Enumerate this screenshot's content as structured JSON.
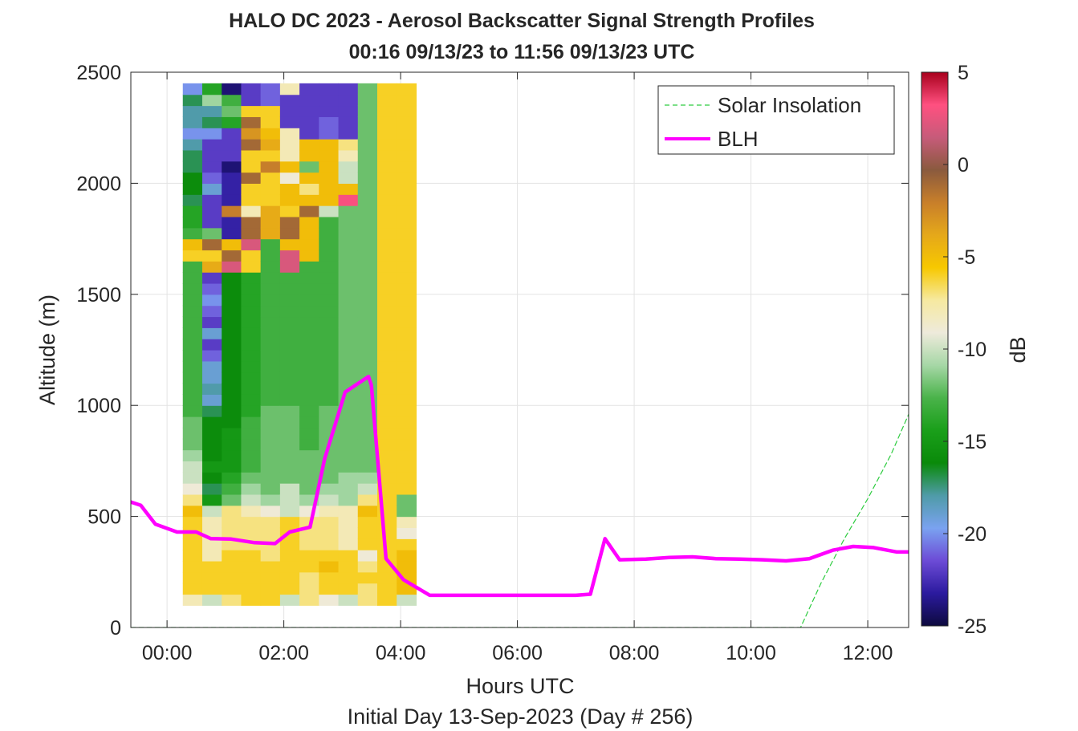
{
  "chart_data": {
    "type": "heatmap",
    "title": "HALO DC 2023 - Aerosol Backscatter Signal Strength Profiles",
    "subtitle": "00:16 09/13/23 to 11:56 09/13/23  UTC",
    "xlabel": "Hours UTC",
    "ylabel": "Altitude (m)",
    "footer": "Initial Day 13-Sep-2023 (Day # 256)",
    "x_unit": "hours UTC",
    "xlim": [
      -0.62,
      12.7
    ],
    "ylim": [
      0,
      2500
    ],
    "x_ticks": [
      {
        "value": 0,
        "label": "00:00"
      },
      {
        "value": 2,
        "label": "02:00"
      },
      {
        "value": 4,
        "label": "04:00"
      },
      {
        "value": 6,
        "label": "06:00"
      },
      {
        "value": 8,
        "label": "08:00"
      },
      {
        "value": 10,
        "label": "10:00"
      },
      {
        "value": 12,
        "label": "12:00"
      }
    ],
    "y_ticks": [
      {
        "value": 0,
        "label": "0"
      },
      {
        "value": 500,
        "label": "500"
      },
      {
        "value": 1000,
        "label": "1000"
      },
      {
        "value": 1500,
        "label": "1500"
      },
      {
        "value": 2000,
        "label": "2000"
      },
      {
        "value": 2500,
        "label": "2500"
      }
    ],
    "grid": true,
    "legend_position": "top-right",
    "colorbar": {
      "label": "dB",
      "range": [
        -25,
        5
      ],
      "ticks": [
        {
          "value": 5,
          "label": "5"
        },
        {
          "value": 0,
          "label": "0"
        },
        {
          "value": -5,
          "label": "-5"
        },
        {
          "value": -10,
          "label": "-10"
        },
        {
          "value": -15,
          "label": "-15"
        },
        {
          "value": -20,
          "label": "-20"
        },
        {
          "value": -25,
          "label": "-25"
        }
      ]
    },
    "heatmap": {
      "x_start": 0.27,
      "x_step": 0.333,
      "y_start": 100,
      "y_step": 50,
      "note_rows": "rows listed from lowest altitude bin upward; values in dB",
      "columns": [
        [
          -8,
          -6,
          -6,
          -6,
          -6,
          -6,
          -6,
          -6,
          -5,
          -7,
          -9,
          -10,
          -10,
          -11,
          -12,
          -12,
          -12,
          -13,
          -13,
          -13,
          -13,
          -13,
          -13,
          -13,
          -13,
          -13,
          -13,
          -13,
          -13,
          -13,
          -13,
          -6,
          -5,
          -13,
          -14,
          -14,
          -17,
          -16,
          -16,
          -17,
          -17,
          -18,
          -20,
          -18,
          -18,
          -17,
          -20
        ],
        [
          -10,
          -6,
          -6,
          -6,
          -8,
          -8,
          -8,
          -8,
          -10,
          -15,
          -17,
          -16,
          -15,
          -16,
          -16,
          -16,
          -16,
          -17,
          -19,
          -18,
          -19,
          -19,
          -21,
          -22,
          -19,
          -22,
          -21,
          -20,
          -21,
          -22,
          -4,
          -6,
          -1,
          -12,
          -22,
          -22,
          -22,
          -19,
          -21,
          -22,
          -22,
          -22,
          -20,
          -17,
          -18,
          -11,
          -14
        ],
        [
          -7,
          -6,
          -6,
          -6,
          -6,
          -7,
          -7,
          -7,
          -7,
          -12,
          -13,
          -14,
          -15,
          -15,
          -15,
          -15,
          -16,
          -16,
          -16,
          -16,
          -16,
          -16,
          -16,
          -16,
          -16,
          -16,
          -16,
          -16,
          -16,
          -16,
          2,
          -1,
          -5,
          -23,
          -23,
          -2,
          -23,
          -23,
          -23,
          -24,
          -22,
          -22,
          -22,
          -14,
          -12,
          -13,
          -24
        ],
        [
          -6,
          -6,
          -6,
          -6,
          -6,
          -7,
          -7,
          -7,
          -8,
          -10,
          -11,
          -12,
          -13,
          -13,
          -13,
          -13,
          -13,
          -14,
          -14,
          -14,
          -14,
          -14,
          -14,
          -14,
          -14,
          -14,
          -14,
          -14,
          -14,
          -14,
          -6,
          -6,
          2,
          -1,
          -1,
          -8,
          -6,
          -6,
          -1,
          -6,
          -6,
          -1,
          -3,
          -1,
          -6,
          -22,
          -22
        ],
        [
          -6,
          -6,
          -6,
          -6,
          -7,
          -7,
          -7,
          -7,
          -9,
          -11,
          -12,
          -12,
          -12,
          -12,
          -12,
          -12,
          -12,
          -12,
          -13,
          -13,
          -13,
          -13,
          -13,
          -13,
          -13,
          -13,
          -13,
          -13,
          -13,
          -13,
          -13,
          -13,
          -13,
          -4,
          -4,
          -4,
          -6,
          -6,
          -6,
          -2,
          -6,
          -4,
          -5,
          -6,
          -6,
          -21,
          -21
        ],
        [
          -10,
          -6,
          -6,
          -6,
          -6,
          -6,
          -6,
          -6,
          -10,
          -10,
          -10,
          -12,
          -12,
          -12,
          -12,
          -12,
          -12,
          -12,
          -13,
          -13,
          -13,
          -13,
          -13,
          -13,
          -13,
          -13,
          -13,
          -13,
          -13,
          -13,
          2,
          2,
          -5,
          -1,
          -1,
          -6,
          -5,
          -5,
          -9,
          -5,
          -8,
          -8,
          -8,
          -22,
          -22,
          -22,
          -8
        ],
        [
          -7,
          -7,
          -7,
          -6,
          -6,
          -7,
          -7,
          -7,
          -9,
          -11,
          -12,
          -12,
          -12,
          -12,
          -13,
          -13,
          -13,
          -13,
          -13,
          -13,
          -13,
          -13,
          -13,
          -13,
          -13,
          -13,
          -13,
          -13,
          -13,
          -13,
          -13,
          -5,
          -5,
          -5,
          -5,
          -1,
          -5,
          -7,
          -5,
          -12,
          -5,
          -5,
          -22,
          -22,
          -22,
          -22,
          -22
        ],
        [
          -9,
          -6,
          -6,
          -5,
          -6,
          -7,
          -7,
          -7,
          -8,
          -10,
          -11,
          -12,
          -12,
          -12,
          -12,
          -12,
          -12,
          -12,
          -13,
          -13,
          -13,
          -13,
          -13,
          -13,
          -13,
          -13,
          -13,
          -13,
          -13,
          -13,
          -13,
          -13,
          -13,
          -13,
          -13,
          -10,
          -5,
          -5,
          -5,
          -5,
          -5,
          -5,
          -21,
          -21,
          -22,
          -22,
          -22
        ],
        [
          -10,
          -6,
          -6,
          -6,
          -6,
          -8,
          -8,
          -8,
          -8,
          -11,
          -11,
          -11,
          -12,
          -12,
          -12,
          -12,
          -12,
          -12,
          -12,
          -12,
          -12,
          -12,
          -12,
          -12,
          -12,
          -12,
          -12,
          -12,
          -12,
          -12,
          -12,
          -12,
          -12,
          -12,
          -12,
          -12,
          3,
          -5,
          -10,
          -10,
          -8,
          -7,
          -22,
          -22,
          -22,
          -22,
          -22
        ],
        [
          -7,
          -7,
          -6,
          -7,
          -9,
          -6,
          -6,
          -6,
          -5,
          -7,
          -10,
          -11,
          -12,
          -12,
          -12,
          -12,
          -12,
          -12,
          -12,
          -12,
          -12,
          -12,
          -12,
          -12,
          -12,
          -12,
          -12,
          -12,
          -12,
          -12,
          -12,
          -12,
          -12,
          -12,
          -12,
          -12,
          -12,
          -12,
          -12,
          -12,
          -12,
          -12,
          -12,
          -12,
          -12,
          -12,
          -12
        ],
        [
          -6,
          -6,
          -6,
          -6,
          -6,
          -6,
          -6,
          -6,
          -6,
          -6,
          -6,
          -6,
          -6,
          -6,
          -6,
          -6,
          -6,
          -6,
          -6,
          -6,
          -6,
          -6,
          -6,
          -6,
          -6,
          -6,
          -6,
          -6,
          -6,
          -6,
          -6,
          -6,
          -6,
          -6,
          -6,
          -6,
          -6,
          -6,
          -6,
          -6,
          -6,
          -6,
          -6,
          -6,
          -6,
          -6,
          -6
        ],
        [
          -10,
          -5,
          -5,
          -5,
          -5,
          -6,
          -9,
          -8,
          -12,
          -12,
          -6,
          -6,
          -6,
          -6,
          -6,
          -6,
          -6,
          -6,
          -6,
          -6,
          -6,
          -6,
          -6,
          -6,
          -6,
          -6,
          -6,
          -6,
          -6,
          -6,
          -6,
          -6,
          -6,
          -6,
          -6,
          -6,
          -6,
          -6,
          -6,
          -6,
          -6,
          -6,
          -6,
          -6,
          -6,
          -6,
          -6
        ]
      ]
    },
    "series": [
      {
        "name": "Solar Insolation",
        "style": "dashed",
        "color": "#2ecc40",
        "x": [
          -0.62,
          10.85,
          11.2,
          11.6,
          12.0,
          12.4,
          12.7
        ],
        "y": [
          0,
          0,
          200,
          400,
          580,
          780,
          960
        ]
      },
      {
        "name": "BLH",
        "style": "solid",
        "color": "#ff00ff",
        "x": [
          -0.62,
          -0.45,
          -0.2,
          0.17,
          0.5,
          0.75,
          1.1,
          1.5,
          1.85,
          2.1,
          2.45,
          2.7,
          3.05,
          3.45,
          3.5,
          3.75,
          4.05,
          4.5,
          5.0,
          5.5,
          6.0,
          6.5,
          7.0,
          7.25,
          7.5,
          7.75,
          8.2,
          8.6,
          9.0,
          9.4,
          9.8,
          10.2,
          10.6,
          11.0,
          11.4,
          11.75,
          12.1,
          12.5,
          12.7
        ],
        "y": [
          565,
          550,
          465,
          430,
          430,
          400,
          398,
          382,
          378,
          430,
          452,
          760,
          1060,
          1130,
          1090,
          310,
          215,
          145,
          145,
          145,
          145,
          145,
          145,
          150,
          400,
          305,
          308,
          315,
          318,
          310,
          308,
          305,
          300,
          310,
          348,
          365,
          360,
          340,
          340
        ]
      }
    ],
    "colors": {
      "blh": "#ff00ff",
      "solar": "#2ecc40",
      "colormap_stops": [
        "#0d0a3e",
        "#2b1a9e",
        "#6c4bd6",
        "#7aa2f0",
        "#4f9ba8",
        "#0a8a0a",
        "#1a9f1a",
        "#4ab34a",
        "#a6d7a6",
        "#eeeadb",
        "#f6e9a0",
        "#f7c800",
        "#e5a81a",
        "#c87f2a",
        "#8a5a3e",
        "#c75b7a",
        "#ff5080",
        "#a8001c"
      ]
    }
  }
}
